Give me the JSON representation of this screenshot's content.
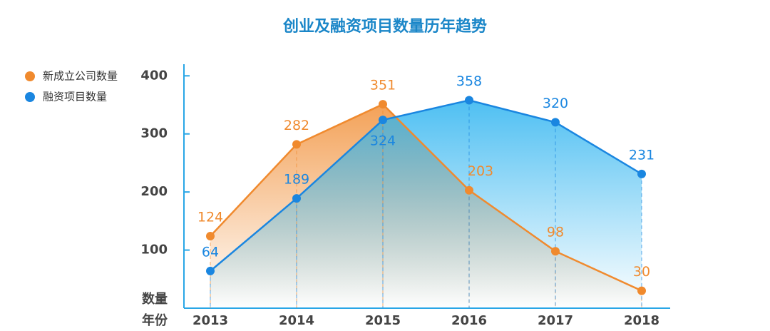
{
  "chart_data": {
    "type": "line",
    "title": "创业及融资项目数量历年趋势",
    "y_label": "数量",
    "x_label": "年份",
    "categories": [
      "2013",
      "2014",
      "2015",
      "2016",
      "2017",
      "2018"
    ],
    "series": [
      {
        "name": "新成立公司数量",
        "color": "#f08a2e",
        "values": [
          124,
          282,
          351,
          203,
          98,
          30
        ]
      },
      {
        "name": "融资项目数量",
        "color": "#1a86e0",
        "values": [
          64,
          189,
          324,
          358,
          320,
          231
        ]
      }
    ],
    "ylim": [
      0,
      420
    ],
    "yticks": [
      100,
      200,
      300,
      400
    ],
    "legend": "top-left"
  }
}
